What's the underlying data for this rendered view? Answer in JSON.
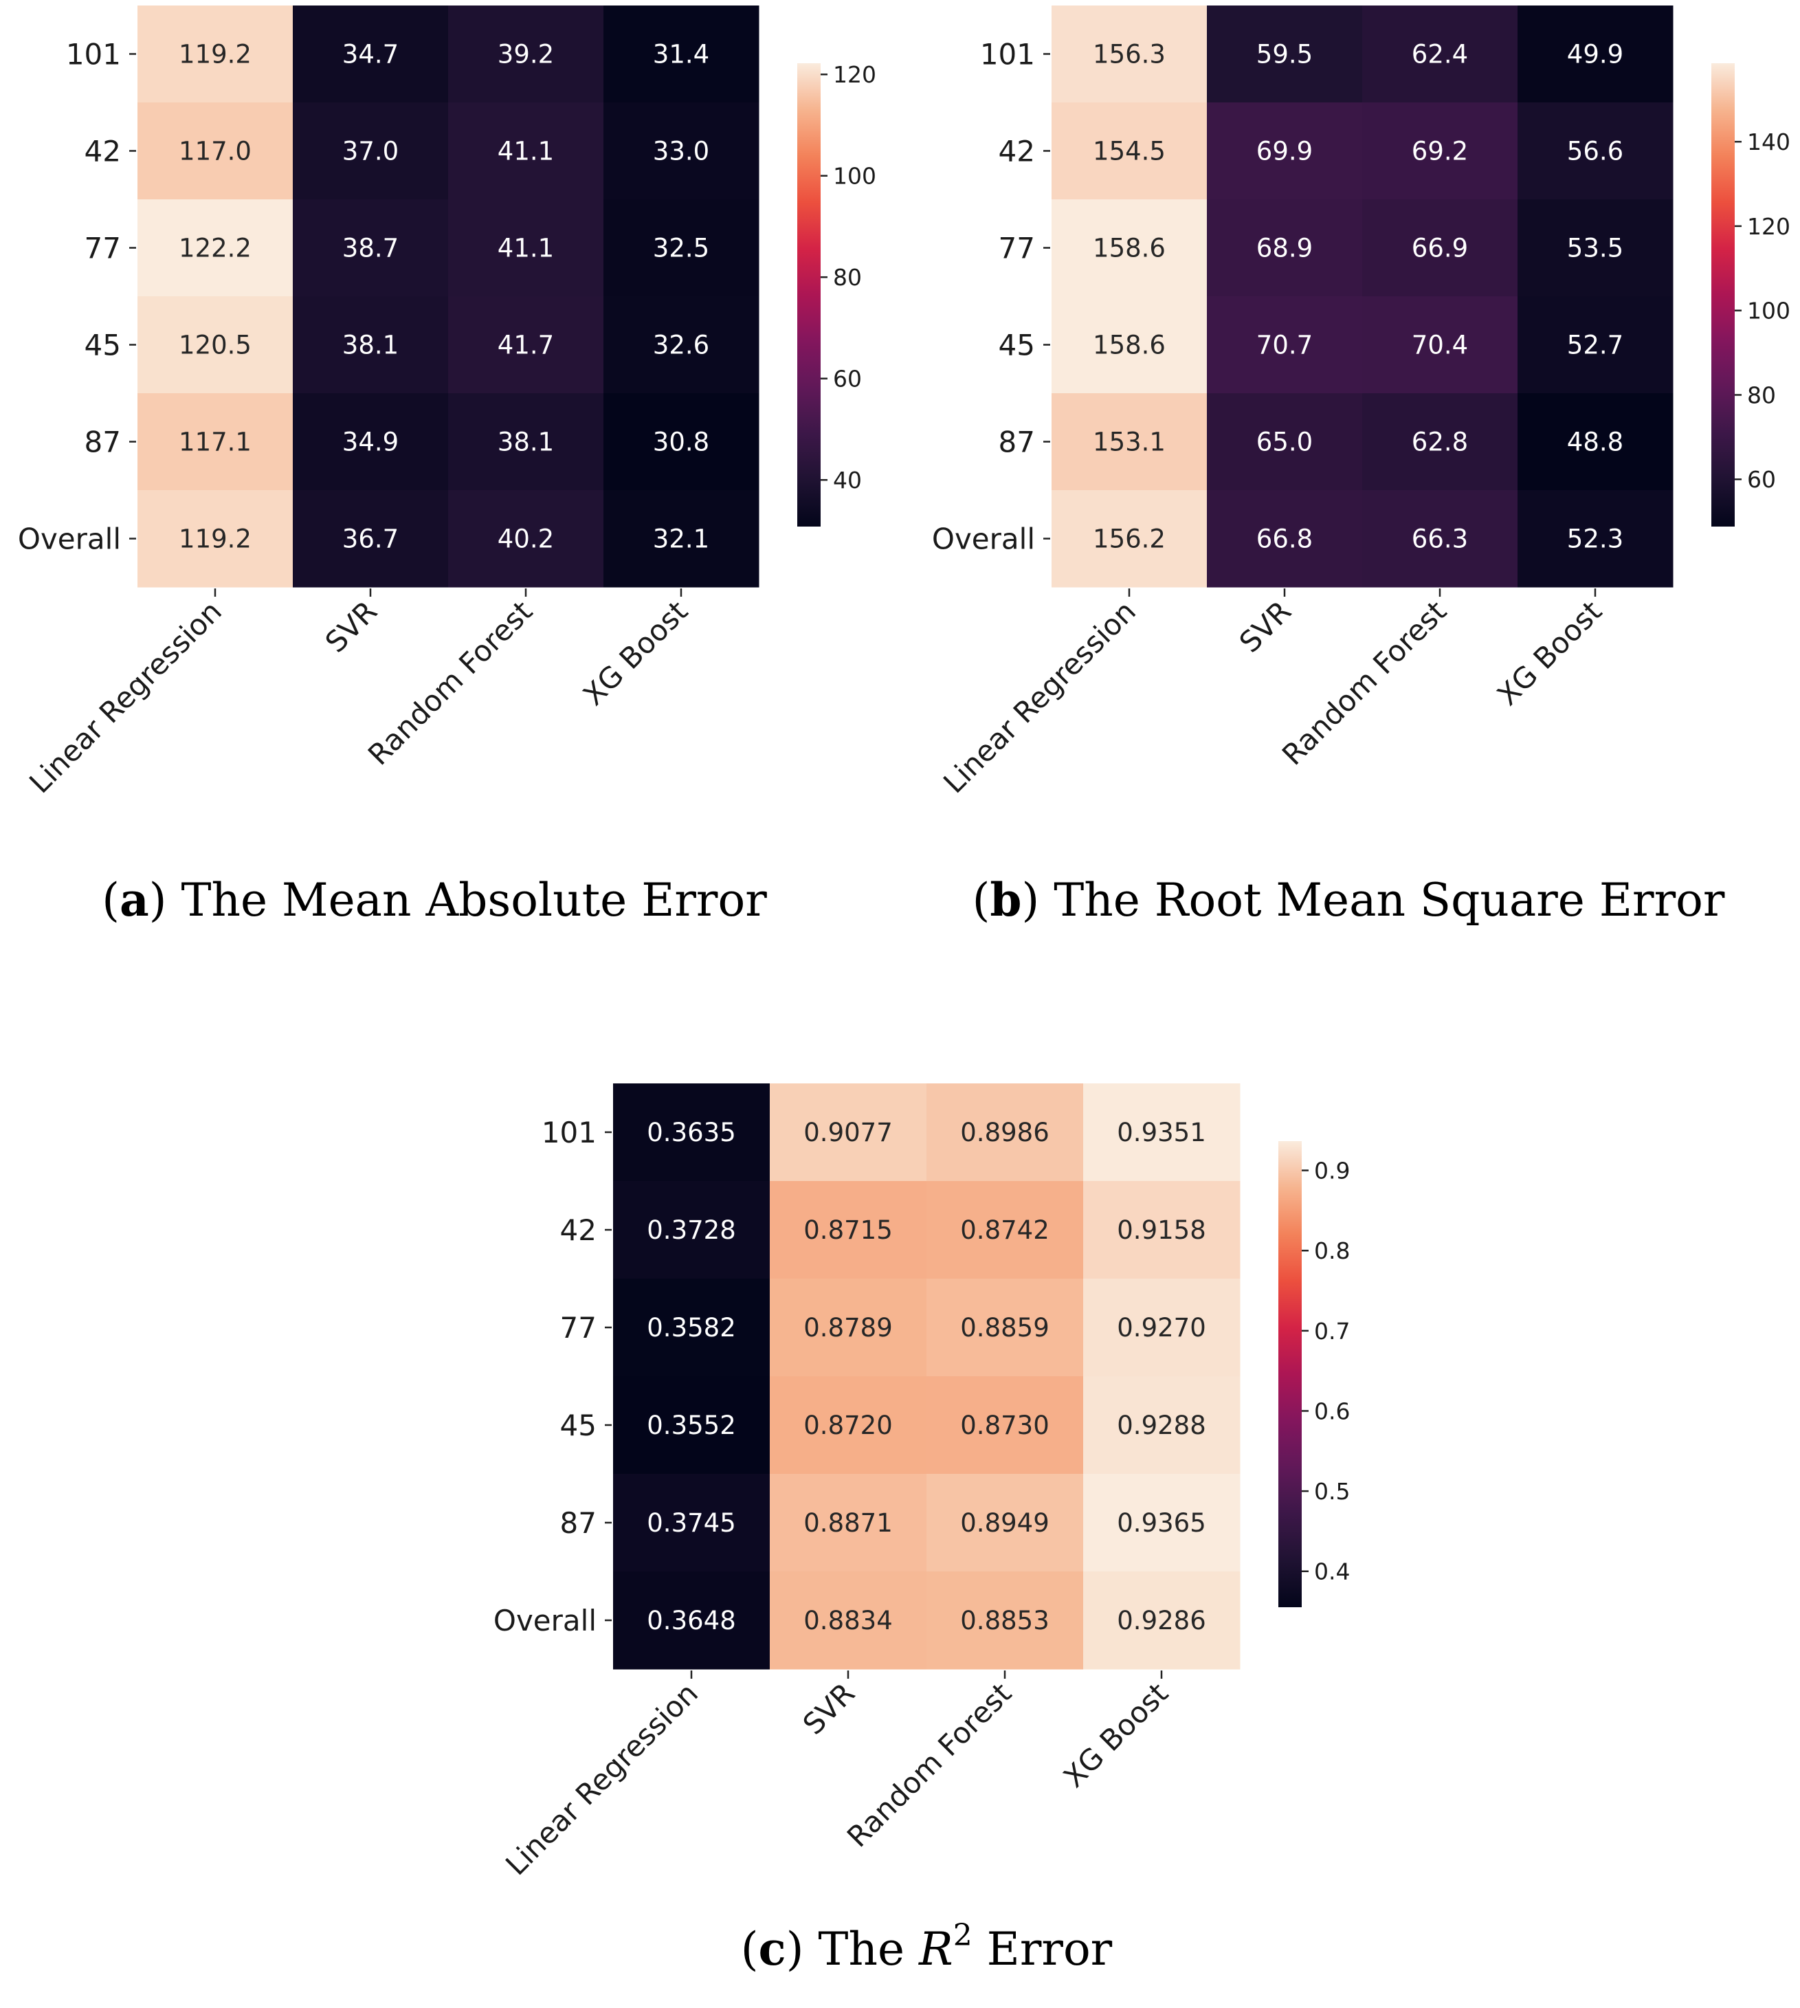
{
  "chart_data": [
    {
      "type": "heatmap",
      "rows": [
        "101",
        "42",
        "77",
        "45",
        "87",
        "Overall"
      ],
      "columns": [
        "Linear Regression",
        "SVR",
        "Random Forest",
        "XG Boost"
      ],
      "values": [
        [
          119.2,
          34.7,
          39.2,
          31.4
        ],
        [
          117.0,
          37.0,
          41.1,
          33.0
        ],
        [
          122.2,
          38.7,
          41.1,
          32.5
        ],
        [
          120.5,
          38.1,
          41.7,
          32.6
        ],
        [
          117.1,
          34.9,
          38.1,
          30.8
        ],
        [
          119.2,
          36.7,
          40.2,
          32.1
        ]
      ],
      "cell_labels": [
        [
          "119.2",
          "34.7",
          "39.2",
          "31.4"
        ],
        [
          "117.0",
          "37.0",
          "41.1",
          "33.0"
        ],
        [
          "122.2",
          "38.7",
          "41.1",
          "32.5"
        ],
        [
          "120.5",
          "38.1",
          "41.7",
          "32.6"
        ],
        [
          "117.1",
          "34.9",
          "38.1",
          "30.8"
        ],
        [
          "119.2",
          "36.7",
          "40.2",
          "32.1"
        ]
      ],
      "color_range": [
        30.8,
        122.2
      ],
      "colorbar_ticks": [
        40,
        60,
        80,
        100,
        120
      ],
      "colormap": "rocket",
      "caption": {
        "letter": "a",
        "text": " The Mean Absolute Error"
      }
    },
    {
      "type": "heatmap",
      "rows": [
        "101",
        "42",
        "77",
        "45",
        "87",
        "Overall"
      ],
      "columns": [
        "Linear Regression",
        "SVR",
        "Random Forest",
        "XG Boost"
      ],
      "values": [
        [
          156.3,
          59.5,
          62.4,
          49.9
        ],
        [
          154.5,
          69.9,
          69.2,
          56.6
        ],
        [
          158.6,
          68.9,
          66.9,
          53.5
        ],
        [
          158.6,
          70.7,
          70.4,
          52.7
        ],
        [
          153.1,
          65.0,
          62.8,
          48.8
        ],
        [
          156.2,
          66.8,
          66.3,
          52.3
        ]
      ],
      "cell_labels": [
        [
          "156.3",
          "59.5",
          "62.4",
          "49.9"
        ],
        [
          "154.5",
          "69.9",
          "69.2",
          "56.6"
        ],
        [
          "158.6",
          "68.9",
          "66.9",
          "53.5"
        ],
        [
          "158.6",
          "70.7",
          "70.4",
          "52.7"
        ],
        [
          "153.1",
          "65.0",
          "62.8",
          "48.8"
        ],
        [
          "156.2",
          "66.8",
          "66.3",
          "52.3"
        ]
      ],
      "color_range": [
        48.8,
        158.6
      ],
      "colorbar_ticks": [
        60,
        80,
        100,
        120,
        140
      ],
      "colormap": "rocket",
      "caption": {
        "letter": "b",
        "text": " The Root Mean Square Error"
      }
    },
    {
      "type": "heatmap",
      "rows": [
        "101",
        "42",
        "77",
        "45",
        "87",
        "Overall"
      ],
      "columns": [
        "Linear Regression",
        "SVR",
        "Random Forest",
        "XG Boost"
      ],
      "values": [
        [
          0.3635,
          0.9077,
          0.8986,
          0.9351
        ],
        [
          0.3728,
          0.8715,
          0.8742,
          0.9158
        ],
        [
          0.3582,
          0.8789,
          0.8859,
          0.927
        ],
        [
          0.3552,
          0.872,
          0.873,
          0.9288
        ],
        [
          0.3745,
          0.8871,
          0.8949,
          0.9365
        ],
        [
          0.3648,
          0.8834,
          0.8853,
          0.9286
        ]
      ],
      "cell_labels": [
        [
          "0.3635",
          "0.9077",
          "0.8986",
          "0.9351"
        ],
        [
          "0.3728",
          "0.8715",
          "0.8742",
          "0.9158"
        ],
        [
          "0.3582",
          "0.8789",
          "0.8859",
          "0.9270"
        ],
        [
          "0.3552",
          "0.8720",
          "0.8730",
          "0.9288"
        ],
        [
          "0.3745",
          "0.8871",
          "0.8949",
          "0.9365"
        ],
        [
          "0.3648",
          "0.8834",
          "0.8853",
          "0.9286"
        ]
      ],
      "color_range": [
        0.3552,
        0.9365
      ],
      "colorbar_ticks": [
        0.4,
        0.5,
        0.6,
        0.7,
        0.8,
        0.9
      ],
      "colorbar_tick_labels": [
        "0.4",
        "0.5",
        "0.6",
        "0.7",
        "0.8",
        "0.9"
      ],
      "colormap": "rocket",
      "caption": {
        "letter": "c",
        "pre": " The ",
        "var": "R",
        "sup": "2",
        "post": " Error"
      }
    }
  ]
}
